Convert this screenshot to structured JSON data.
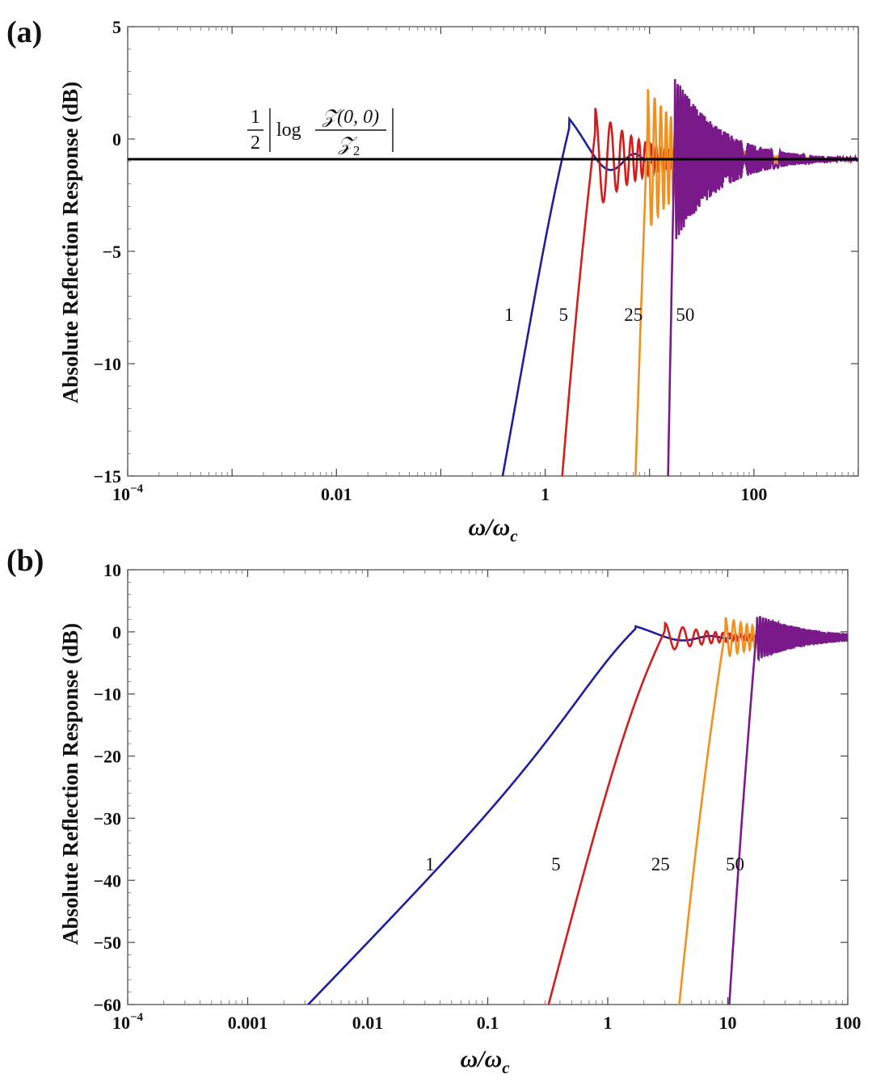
{
  "chart_data": [
    {
      "panel": "(a)",
      "type": "line",
      "xscale": "log",
      "xlim": [
        0.0001,
        1000
      ],
      "ylim": [
        -15,
        5
      ],
      "xlabel": "ω/ω",
      "xlabel_sub": "c",
      "ylabel": "Absolute Reflection Response (dB)",
      "xticks": [
        {
          "value": 0.0001,
          "base": "10",
          "exp": "−4"
        },
        {
          "value": 0.01,
          "label": "0.01"
        },
        {
          "value": 1,
          "label": "1"
        },
        {
          "value": 100,
          "label": "100"
        }
      ],
      "yticks": [
        5,
        0,
        -5,
        -10,
        -15
      ],
      "ytick_labels": [
        "5",
        "0",
        "−5",
        "−10",
        "−15"
      ],
      "asymptote": {
        "value": -0.9,
        "color": "#000000"
      },
      "annotation": {
        "frac_num": "1",
        "frac_den": "2",
        "log": "log",
        "num": "𝒵(0, 0)",
        "den": "𝒵",
        "den_sub": "2"
      },
      "series": [
        {
          "name": "1",
          "color": "#1f1f9e",
          "fc": 1.7,
          "ripple": 0.22,
          "amp": 1.8
        },
        {
          "name": "5",
          "color": "#d41c1c",
          "fc": 3.0,
          "ripple": 0.085,
          "amp": 2.3
        },
        {
          "name": "25",
          "color": "#f0901e",
          "fc": 9.6,
          "ripple": 0.035,
          "amp": 3.2
        },
        {
          "name": "50",
          "color": "#7a1a8a",
          "fc": 17.5,
          "ripple": 0.013,
          "amp": 3.7
        }
      ],
      "curve_labels": [
        {
          "text": "1",
          "x": 0.45,
          "y": -8.1
        },
        {
          "text": "5",
          "x": 1.5,
          "y": -8.1
        },
        {
          "text": "25",
          "x": 7.0,
          "y": -8.1
        },
        {
          "text": "50",
          "x": 22.0,
          "y": -8.1
        }
      ]
    },
    {
      "panel": "(b)",
      "type": "line",
      "xscale": "log",
      "xlim": [
        0.0001,
        100
      ],
      "ylim": [
        -60,
        10
      ],
      "xlabel": "ω/ω",
      "xlabel_sub": "c",
      "ylabel": "Absolute Reflection Response (dB)",
      "xticks": [
        {
          "value": 0.0001,
          "base": "10",
          "exp": "−4"
        },
        {
          "value": 0.001,
          "label": "0.001"
        },
        {
          "value": 0.01,
          "label": "0.01"
        },
        {
          "value": 0.1,
          "label": "0.1"
        },
        {
          "value": 1,
          "label": "1"
        },
        {
          "value": 10,
          "label": "10"
        },
        {
          "value": 100,
          "label": "100"
        }
      ],
      "yticks": [
        10,
        0,
        -10,
        -20,
        -30,
        -40,
        -50,
        -60
      ],
      "ytick_labels": [
        "10",
        "0",
        "−10",
        "−20",
        "−30",
        "−40",
        "−50",
        "−60"
      ],
      "series": [
        {
          "name": "1",
          "color": "#1f1f9e",
          "fc": 1.7,
          "ripple": 0.22,
          "amp": 1.8
        },
        {
          "name": "5",
          "color": "#d41c1c",
          "fc": 3.0,
          "ripple": 0.085,
          "amp": 2.3
        },
        {
          "name": "25",
          "color": "#f0901e",
          "fc": 9.6,
          "ripple": 0.035,
          "amp": 3.2
        },
        {
          "name": "50",
          "color": "#7a1a8a",
          "fc": 17.5,
          "ripple": 0.013,
          "amp": 3.7
        }
      ],
      "curve_labels": [
        {
          "text": "1",
          "x": 0.033,
          "y": -38.4
        },
        {
          "text": "5",
          "x": 0.37,
          "y": -38.4
        },
        {
          "text": "25",
          "x": 2.75,
          "y": -38.4
        },
        {
          "text": "50",
          "x": 11.5,
          "y": -38.4
        }
      ]
    }
  ]
}
